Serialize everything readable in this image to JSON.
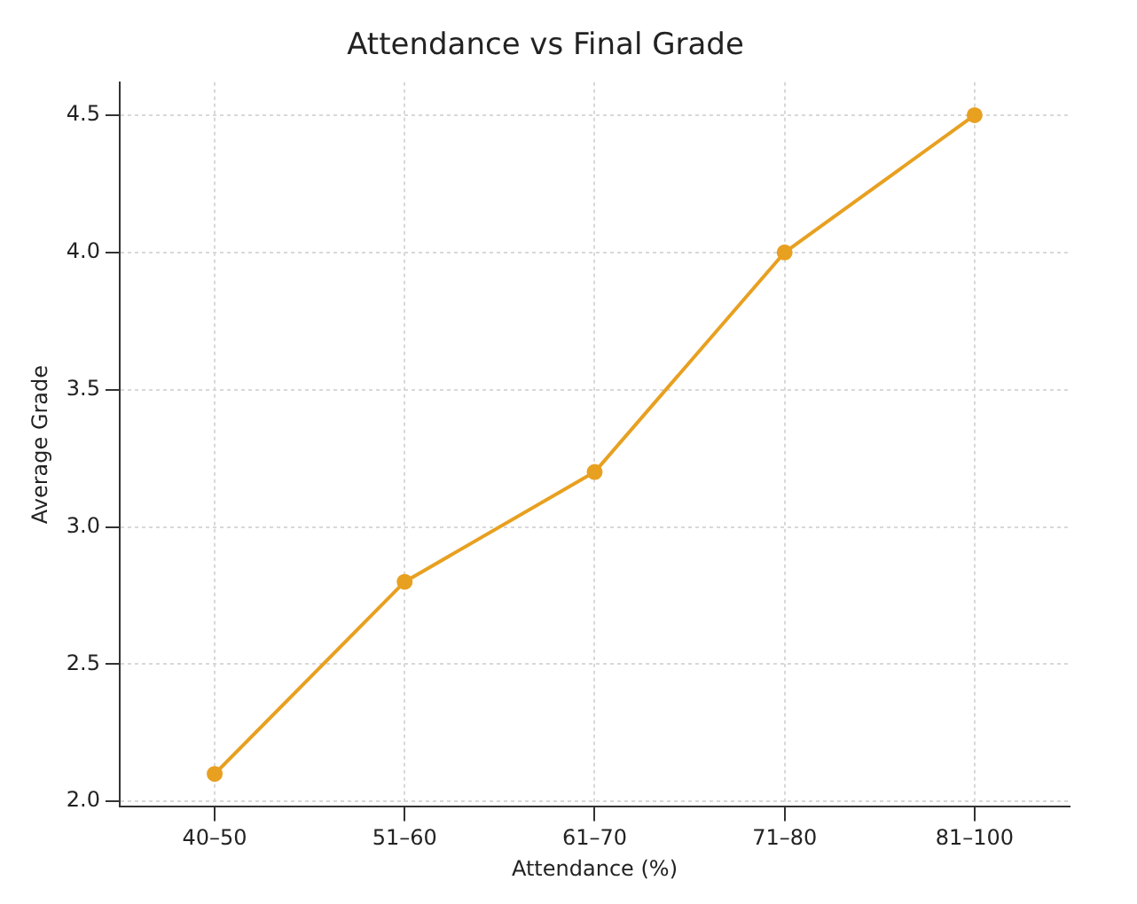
{
  "chart_data": {
    "type": "line",
    "title": "Attendance vs Final Grade",
    "xlabel": "Attendance (%)",
    "ylabel": "Average Grade",
    "categories": [
      "40–50",
      "51–60",
      "61–70",
      "71–80",
      "81–100"
    ],
    "series": [
      {
        "color": "#e8a020",
        "values": [
          2.1,
          2.8,
          3.2,
          4.0,
          4.5
        ]
      }
    ],
    "ylim": [
      1.98,
      4.62
    ],
    "yticks": [
      {
        "value": 2,
        "label": "2.0"
      },
      2.5,
      {
        "value": 3,
        "label": "3.0"
      },
      3.5,
      {
        "value": 4,
        "label": "4.0"
      },
      4.5
    ],
    "grid": true,
    "marker": "circle",
    "line_style": "solid",
    "legend": false
  }
}
